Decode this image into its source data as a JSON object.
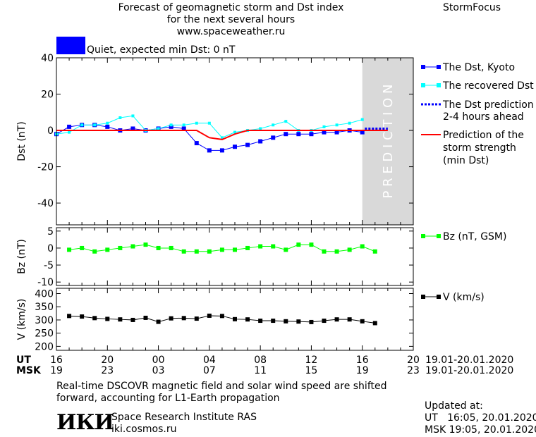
{
  "header": {
    "title_line1": "Forecast of geomagnetic storm and Dst index",
    "title_line2": "for the next several hours",
    "url": "www.spaceweather.ru",
    "brand": "StormFocus",
    "status_text": "Quiet, expected min Dst: 0 nT",
    "status_color": "#0000ff"
  },
  "prediction_label": "P R E D I C T I O N",
  "colors": {
    "dst_kyoto": "#0000ff",
    "dst_recovered": "#00ffff",
    "dst_prediction": "#0000ff",
    "storm_strength": "#ff0000",
    "bz": "#00ff00",
    "v": "#000000",
    "prediction_zone": "#d9d9d9"
  },
  "legend": {
    "dst_kyoto": "The Dst, Kyoto",
    "dst_recovered": "The recovered Dst",
    "dst_prediction_l1": "The Dst prediction",
    "dst_prediction_l2": "2-4 hours ahead",
    "storm_l1": "Prediction of the",
    "storm_l2": "storm strength",
    "storm_l3": "(min Dst)",
    "bz": "Bz (nT, GSM)",
    "v": "V (km/s)"
  },
  "axes": {
    "x_ut_label": "UT",
    "x_msk_label": "MSK",
    "x_ut_ticks": [
      "16",
      "20",
      "00",
      "04",
      "08",
      "12",
      "16",
      "20"
    ],
    "x_msk_ticks": [
      "19",
      "23",
      "03",
      "07",
      "11",
      "15",
      "19",
      "23"
    ],
    "date_range_ut": "19.01-20.01.2020",
    "date_range_msk": "19.01-20.01.2020"
  },
  "footer": {
    "note_line1": "Real-time DSCOVR magnetic field and solar wind speed are shifted",
    "note_line2": "forward, accounting for L1-Earth propagation",
    "org_logo": "ИКИ",
    "org_name": "Space Research Institute RAS",
    "org_url": "iki.cosmos.ru",
    "updated_label": "Updated at:",
    "updated_ut": "UT   16:05, 20.01.2020",
    "updated_msk": "MSK 19:05, 20.01.2020"
  },
  "chart_data": [
    {
      "type": "line",
      "ylabel": "Dst (nT)",
      "ylim": [
        -52,
        40
      ],
      "yticks": [
        40,
        20,
        0,
        -20,
        -40
      ],
      "xlim": [
        0,
        28
      ],
      "prediction_zone_x": [
        24,
        28
      ],
      "series": [
        {
          "name": "The Dst, Kyoto",
          "x": [
            0,
            1,
            2,
            3,
            4,
            5,
            6,
            7,
            8,
            9,
            10,
            11,
            12,
            13,
            14,
            15,
            16,
            17,
            18,
            19,
            20,
            21,
            22,
            23,
            24
          ],
          "values": [
            -2,
            2,
            3,
            3,
            2,
            0,
            1,
            0,
            1,
            2,
            1,
            -7,
            -11,
            -11,
            -9,
            -8,
            -6,
            -4,
            -2,
            -2,
            -2,
            -1,
            -1,
            0,
            -1
          ]
        },
        {
          "name": "The recovered Dst",
          "x": [
            0,
            1,
            2,
            3,
            4,
            5,
            6,
            7,
            8,
            9,
            10,
            11,
            12,
            13,
            14,
            15,
            16,
            17,
            18,
            19,
            20,
            21,
            22,
            23,
            24
          ],
          "values": [
            -2,
            -1,
            3,
            3,
            4,
            7,
            8,
            0,
            1,
            3,
            3,
            4,
            4,
            -4,
            -1,
            0,
            1,
            3,
            5,
            0,
            0,
            2,
            3,
            4,
            6
          ]
        },
        {
          "name": "The Dst prediction 2-4 hours ahead",
          "x": [
            24.2,
            26
          ],
          "values": [
            1,
            1
          ]
        },
        {
          "name": "Prediction of the storm strength (min Dst)",
          "x": [
            0,
            11,
            12,
            13,
            14,
            15,
            26
          ],
          "values": [
            0,
            0,
            -4,
            -5,
            -2,
            0,
            0
          ]
        }
      ]
    },
    {
      "type": "line",
      "ylabel": "Bz (nT)",
      "ylim": [
        -11,
        6
      ],
      "yticks": [
        5,
        0,
        -5,
        -10
      ],
      "xlim": [
        0,
        28
      ],
      "series": [
        {
          "name": "Bz (nT, GSM)",
          "x": [
            1,
            2,
            3,
            4,
            5,
            6,
            7,
            8,
            9,
            10,
            11,
            12,
            13,
            14,
            15,
            16,
            17,
            18,
            19,
            20,
            21,
            22,
            23,
            24,
            25
          ],
          "values": [
            -0.5,
            0,
            -1,
            -0.5,
            0,
            0.5,
            1,
            0,
            0,
            -1,
            -1,
            -1,
            -0.5,
            -0.5,
            0,
            0.5,
            0.5,
            -0.5,
            1,
            1,
            -1,
            -1,
            -0.5,
            0.5,
            -1
          ]
        }
      ]
    },
    {
      "type": "line",
      "ylabel": "V (km/s)",
      "ylim": [
        185,
        420
      ],
      "yticks": [
        400,
        350,
        300,
        250,
        200
      ],
      "xlim": [
        0,
        28
      ],
      "series": [
        {
          "name": "V (km/s)",
          "x": [
            1,
            2,
            3,
            4,
            5,
            6,
            7,
            8,
            9,
            10,
            11,
            12,
            13,
            14,
            15,
            16,
            17,
            18,
            19,
            20,
            21,
            22,
            23,
            24,
            25
          ],
          "values": [
            315,
            313,
            307,
            304,
            302,
            300,
            308,
            293,
            306,
            307,
            305,
            316,
            315,
            303,
            302,
            297,
            297,
            295,
            294,
            292,
            297,
            302,
            302,
            295,
            288
          ]
        }
      ]
    }
  ]
}
